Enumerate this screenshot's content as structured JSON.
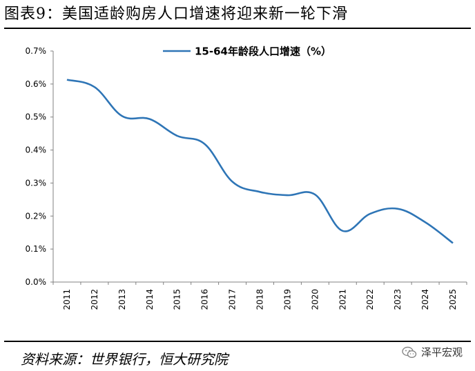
{
  "header": {
    "title": "图表9：美国适龄购房人口增速将迎来新一轮下滑"
  },
  "footer": {
    "source": "资料来源：世界银行，恒大研究院",
    "brand": "泽平宏观"
  },
  "colors": {
    "series": "#2E75B6",
    "axis": "#808080",
    "rule": "#000000"
  },
  "icons": {
    "brand": "wechat-icon"
  },
  "chart_data": {
    "type": "line",
    "title": "",
    "xlabel": "",
    "ylabel": "",
    "x": [
      "2011",
      "2012",
      "2013",
      "2014",
      "2015",
      "2016",
      "2017",
      "2018",
      "2019",
      "2020",
      "2021",
      "2022",
      "2023",
      "2024",
      "2025"
    ],
    "series": [
      {
        "name": "15-64年龄段人口增速（%）",
        "values": [
          0.613,
          0.591,
          0.503,
          0.494,
          0.443,
          0.418,
          0.304,
          0.273,
          0.263,
          0.265,
          0.155,
          0.207,
          0.222,
          0.181,
          0.118
        ]
      }
    ],
    "ylim": [
      0,
      0.7
    ],
    "yticks": [
      "0.0%",
      "0.1%",
      "0.2%",
      "0.3%",
      "0.4%",
      "0.5%",
      "0.6%",
      "0.7%"
    ],
    "legend": "top-center",
    "grid": false
  }
}
